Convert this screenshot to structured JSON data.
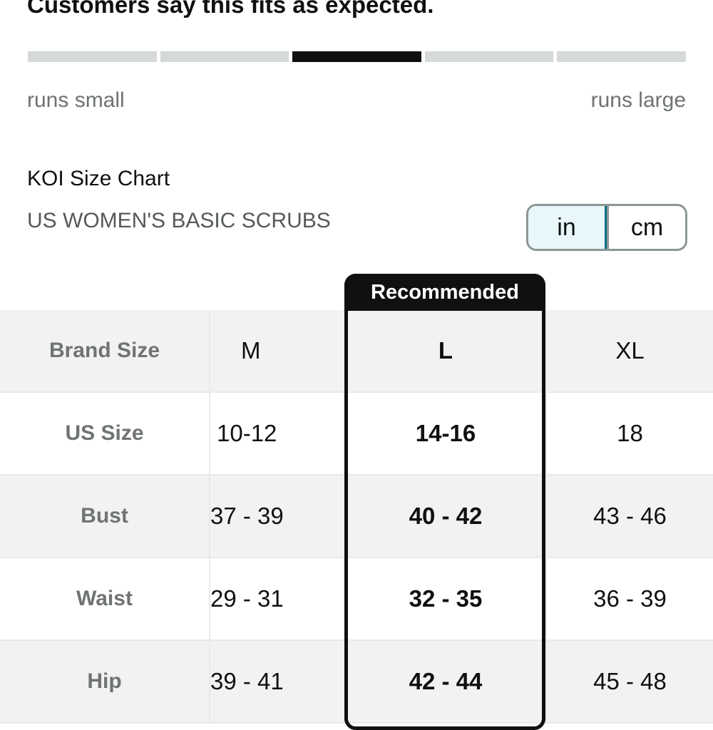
{
  "fit": {
    "title": "Customers say this fits as expected.",
    "left_label": "runs small",
    "right_label": "runs large",
    "segments": 5,
    "active_segment": 3
  },
  "chart": {
    "title": "KOI Size Chart",
    "subtitle": "US WOMEN'S BASIC SCRUBS"
  },
  "units": {
    "in_label": "in",
    "cm_label": "cm",
    "selected": "in"
  },
  "recommended": {
    "label": "Recommended",
    "column": "L"
  },
  "table": {
    "rows": [
      {
        "label": "Brand Size",
        "values": [
          "M",
          "L",
          "XL"
        ]
      },
      {
        "label": "US Size",
        "values": [
          "10-12",
          "14-16",
          "18"
        ]
      },
      {
        "label": "Bust",
        "values": [
          "37 - 39",
          "40 - 42",
          "43 - 46"
        ]
      },
      {
        "label": "Waist",
        "values": [
          "29 - 31",
          "32 - 35",
          "36 - 39"
        ]
      },
      {
        "label": "Hip",
        "values": [
          "39 - 41",
          "42 - 44",
          "45 - 48"
        ]
      }
    ]
  },
  "colors": {
    "accent": "#007185",
    "selected_bg": "#e8f8fa",
    "bar_active": "#0f1111",
    "bar_inactive": "#d5d9d9"
  }
}
